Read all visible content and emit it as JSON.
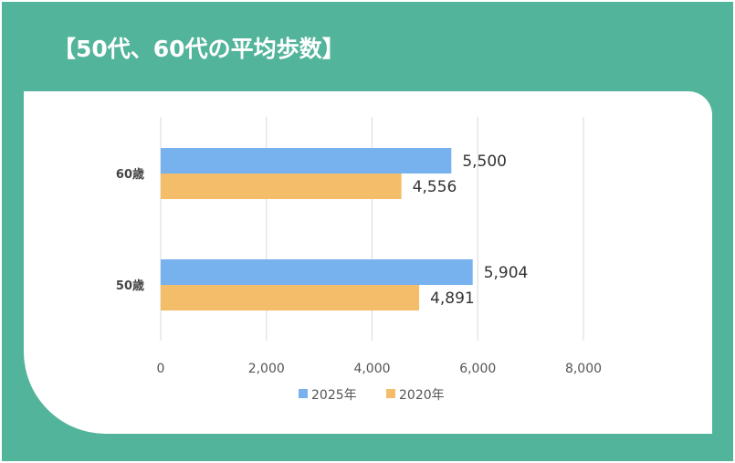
{
  "title": "【50代、60代の平均歩数】",
  "colors": {
    "background": "#52b49a",
    "series_2025": "#77b1ee",
    "series_2020": "#f4bd6a",
    "gridline": "#d9d9d9"
  },
  "chart_data": {
    "type": "bar",
    "orientation": "horizontal",
    "categories": [
      "60歳",
      "50歳"
    ],
    "series": [
      {
        "name": "2025年",
        "values": [
          5500,
          5904
        ],
        "labels": [
          "5,500",
          "5,904"
        ]
      },
      {
        "name": "2020年",
        "values": [
          4556,
          4891
        ],
        "labels": [
          "4,556",
          "4,891"
        ]
      }
    ],
    "xlim": [
      0,
      8000
    ],
    "xticks": [
      0,
      2000,
      4000,
      6000,
      8000
    ],
    "xtick_labels": [
      "0",
      "2,000",
      "4,000",
      "6,000",
      "8,000"
    ],
    "grid": true,
    "legend_position": "bottom",
    "xlabel": "",
    "ylabel": ""
  }
}
